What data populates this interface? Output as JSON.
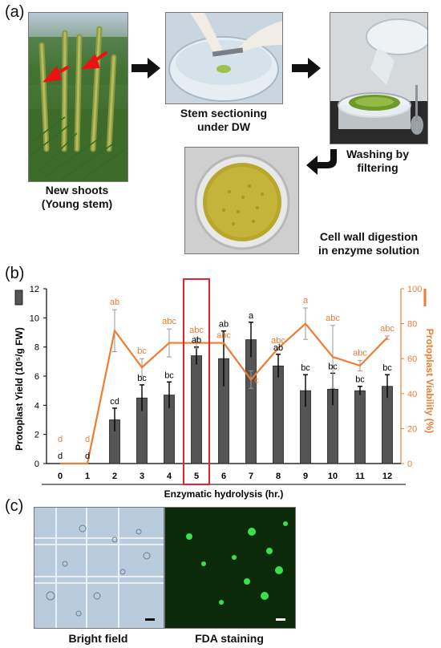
{
  "panel_a": {
    "label": "(a)",
    "steps": [
      {
        "line1": "New shoots",
        "line2": "(Young stem)"
      },
      {
        "line1": "Stem sectioning",
        "line2": "under DW"
      },
      {
        "line1": "Washing by",
        "line2": "filtering"
      },
      {
        "line1": "Cell wall digestion",
        "line2": "in enzyme solution"
      }
    ]
  },
  "panel_b": {
    "label": "(b)"
  },
  "panel_c": {
    "label": "(c)",
    "left_caption": "Bright field",
    "right_caption": "FDA staining"
  },
  "colors": {
    "bar": "#555555",
    "line": "#ED7D31",
    "highlight": "#E8202A"
  },
  "chart_data": {
    "type": "bar",
    "xlabel": "Enzymatic hydrolysis (hr.)",
    "ylabel": "Protoplast Yield (10⁵/g FW)",
    "y2label": "Protoplast Viability (%)",
    "categories": [
      "0",
      "1",
      "2",
      "3",
      "4",
      "5",
      "6",
      "7",
      "8",
      "9",
      "10",
      "11",
      "12"
    ],
    "ylim": [
      0,
      12
    ],
    "yticks": [
      "0",
      "2",
      "4",
      "6",
      "8",
      "10",
      "12"
    ],
    "y2lim": [
      0,
      100
    ],
    "y2ticks": [
      "0",
      "20",
      "40",
      "60",
      "80",
      "100"
    ],
    "highlight_category": "5",
    "series": [
      {
        "type": "bar",
        "values": [
          0,
          0,
          3.0,
          4.5,
          4.7,
          7.4,
          7.2,
          8.5,
          6.7,
          5.0,
          5.1,
          5.0,
          5.3
        ],
        "errors": [
          0,
          0,
          0.8,
          0.9,
          0.9,
          0.6,
          1.9,
          1.2,
          0.8,
          1.1,
          1.1,
          0.3,
          0.8
        ],
        "letters": [
          "d",
          "d",
          "cd",
          "bc",
          "bc",
          "ab",
          "ab",
          "a",
          "ab",
          "bc",
          "bc",
          "bc",
          "bc"
        ]
      },
      {
        "type": "line",
        "values": [
          0,
          0,
          76,
          55,
          69,
          69,
          69,
          48,
          66,
          80,
          61,
          56,
          72
        ],
        "errors": [
          0,
          0,
          12,
          5,
          8,
          3,
          0,
          5,
          0,
          9,
          18,
          3,
          1
        ],
        "letters": [
          "d",
          "d",
          "ab",
          "bc",
          "abc",
          "abc",
          "abc",
          "c",
          "abc",
          "a",
          "abc",
          "abc",
          "abc"
        ]
      }
    ]
  }
}
